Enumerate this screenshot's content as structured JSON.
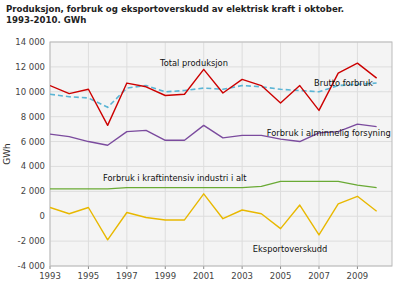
{
  "chart_data": {
    "type": "line",
    "title": "Produksjon, forbruk og eksportoverskudd av elektrisk kraft i oktober.\n1993-2010. GWh",
    "y_label": "GWh",
    "x": [
      1993,
      1994,
      1995,
      1996,
      1997,
      1998,
      1999,
      2000,
      2001,
      2002,
      2003,
      2004,
      2005,
      2006,
      2007,
      2008,
      2009,
      2010
    ],
    "series": [
      {
        "name": "Total produksjon",
        "color": "#cc0000",
        "line_style": "solid",
        "values": [
          10500,
          9850,
          10200,
          7300,
          10700,
          10400,
          9700,
          9800,
          11800,
          9900,
          11000,
          10500,
          9100,
          10500,
          8500,
          11500,
          12300,
          11100
        ]
      },
      {
        "name": "Brutto forbruk",
        "color": "#5bb5d5",
        "line_style": "dashed",
        "values": [
          9800,
          9600,
          9500,
          8750,
          10300,
          10500,
          10000,
          10100,
          10300,
          10200,
          10500,
          10400,
          10200,
          10100,
          10000,
          10500,
          10600,
          10700
        ]
      },
      {
        "name": "Forbruk i alminnelig forsyning",
        "color": "#7b4b9e",
        "line_style": "solid",
        "values": [
          6600,
          6400,
          6000,
          5700,
          6800,
          6900,
          6100,
          6100,
          7300,
          6300,
          6500,
          6500,
          6200,
          6000,
          6700,
          6800,
          7400,
          7200
        ]
      },
      {
        "name": "Forbruk i kraftintensiv industri i alt",
        "color": "#6aaa35",
        "line_style": "solid",
        "values": [
          2200,
          2200,
          2200,
          2200,
          2300,
          2300,
          2300,
          2300,
          2300,
          2300,
          2300,
          2400,
          2800,
          2800,
          2800,
          2800,
          2500,
          2300
        ]
      },
      {
        "name": "Eksportoverskudd",
        "color": "#e8b800",
        "line_style": "solid",
        "values": [
          700,
          200,
          700,
          -1900,
          300,
          -100,
          -300,
          -300,
          1800,
          -200,
          500,
          200,
          -1000,
          900,
          -1500,
          1000,
          1600,
          400
        ]
      }
    ],
    "xlim": [
      1993,
      2010.8
    ],
    "xticks": [
      1993,
      1995,
      1997,
      1999,
      2001,
      2003,
      2005,
      2007,
      2009
    ],
    "ylim": [
      -4000,
      14000
    ],
    "yticks": [
      {
        "value": -4000,
        "label": "-4 000"
      },
      {
        "value": -2000,
        "label": "-2 000"
      },
      0,
      {
        "value": 2000,
        "label": "2 000"
      },
      {
        "value": 4000,
        "label": "4 000"
      },
      {
        "value": 6000,
        "label": "6 000"
      },
      {
        "value": 8000,
        "label": "8 000"
      },
      {
        "value": 10000,
        "label": "10 000"
      },
      {
        "value": 12000,
        "label": "12 000"
      },
      {
        "value": 14000,
        "label": "14 000"
      }
    ],
    "grid": true
  }
}
